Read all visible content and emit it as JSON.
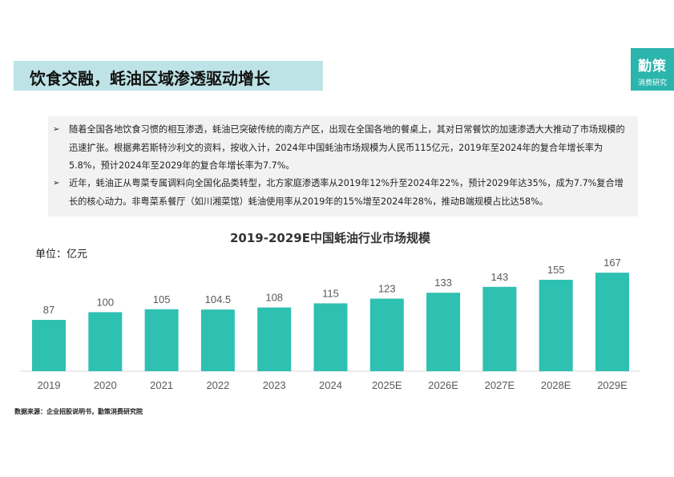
{
  "header": {
    "title": "饮食交融，蚝油区域渗透驱动增长"
  },
  "logo": {
    "line1": "勤策",
    "line2": "消费研究"
  },
  "summary": {
    "bullets": [
      "随着全国各地饮食习惯的相互渗透，蚝油已突破传统的南方产区，出现在全国各地的餐桌上，其对日常餐饮的加速渗透大大推动了市场规模的迅速扩张。根据弗若斯特沙利文的资料，按收入计，2024年中国蚝油市场规模为人民币115亿元，2019年至2024年的复合年增长率为5.8%，预计2024年至2029年的复合年增长率为7.7%。",
      "近年，蚝油正从粤菜专属调料向全国化品类转型，北方家庭渗透率从2019年12%升至2024年22%，预计2029年达35%，成为7.7%复合增长的核心动力。非粤菜系餐厅（如川湘菜馆）蚝油使用率从2019年的15%增至2024年28%，推动B端规模占比达58%。"
    ]
  },
  "chart_data": {
    "type": "bar",
    "title": "2019-2029E中国蚝油行业市场规模",
    "unit_label": "单位：亿元",
    "categories": [
      "2019",
      "2020",
      "2021",
      "2022",
      "2023",
      "2024",
      "2025E",
      "2026E",
      "2027E",
      "2028E",
      "2029E"
    ],
    "values": [
      87,
      100,
      105,
      104.5,
      108,
      115,
      123,
      133,
      143,
      155,
      167
    ],
    "ylim": [
      0,
      175
    ],
    "grid": false,
    "bar_color": "#2ec0b1"
  },
  "footer": {
    "source": "数据来源：企业招股说明书，勤策消费研究院"
  },
  "colors": {
    "title_band": "#bde3e6",
    "logo_bg": "#2bb5ad",
    "summary_bg": "#f2f2f2"
  }
}
